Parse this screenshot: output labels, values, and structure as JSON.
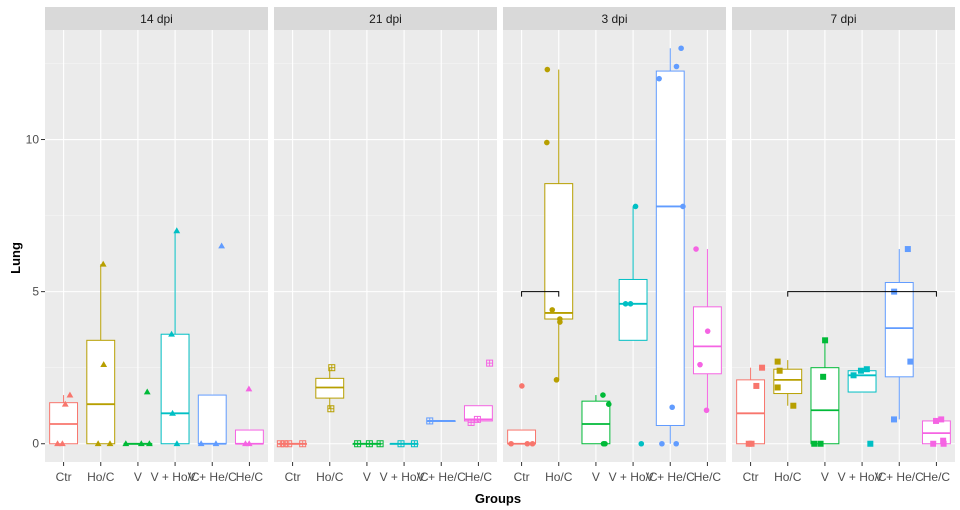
{
  "chart_data": {
    "type": "box",
    "xlabel": "Groups",
    "ylabel": "Lung",
    "ylim": [
      -0.6,
      13.6
    ],
    "yticks": [
      0,
      5,
      10
    ],
    "ytick_labels": [
      "0",
      "5",
      "10"
    ],
    "categories": [
      "Ctr",
      "Ho/C",
      "V",
      "V + Ho/C",
      "V + He/C",
      "He/C"
    ],
    "colors": {
      "Ctr": "#F8766D",
      "Ho/C": "#B79F00",
      "V": "#00BA38",
      "V + Ho/C": "#00BFC4",
      "V + He/C": "#619CFF",
      "He/C": "#F564E3"
    },
    "grid": true,
    "legend": "none",
    "facets": [
      {
        "label": "14 dpi",
        "marker": "triangle",
        "boxes": [
          {
            "group": "Ctr",
            "min": 0,
            "q1": 0,
            "median": 0.65,
            "q3": 1.35,
            "max": 1.6
          },
          {
            "group": "Ho/C",
            "min": 0,
            "q1": 0,
            "median": 1.3,
            "q3": 3.4,
            "max": 5.9
          },
          {
            "group": "V",
            "min": 0,
            "q1": 0,
            "median": 0,
            "q3": 0,
            "max": 0
          },
          {
            "group": "V + Ho/C",
            "min": 0,
            "q1": 0,
            "median": 1.0,
            "q3": 3.6,
            "max": 7.0
          },
          {
            "group": "V + He/C",
            "min": 0,
            "q1": 0,
            "median": 0,
            "q3": 1.6,
            "max": 1.6
          },
          {
            "group": "He/C",
            "min": 0,
            "q1": 0,
            "median": 0,
            "q3": 0.45,
            "max": 0.45
          }
        ],
        "points": [
          {
            "group": "Ctr",
            "values": [
              1.6,
              1.3,
              0,
              0
            ]
          },
          {
            "group": "Ho/C",
            "values": [
              5.9,
              2.6,
              0,
              0
            ]
          },
          {
            "group": "V",
            "values": [
              1.7,
              0,
              0,
              0
            ]
          },
          {
            "group": "V + Ho/C",
            "values": [
              7.0,
              3.6,
              1.0,
              0
            ]
          },
          {
            "group": "V + He/C",
            "values": [
              6.5,
              0,
              0
            ]
          },
          {
            "group": "He/C",
            "values": [
              1.8,
              0,
              0
            ]
          }
        ],
        "brackets": []
      },
      {
        "label": "21 dpi",
        "marker": "square-plus",
        "boxes": [
          {
            "group": "Ctr",
            "min": 0,
            "q1": 0,
            "median": 0,
            "q3": 0,
            "max": 0
          },
          {
            "group": "Ho/C",
            "min": 1.15,
            "q1": 1.5,
            "median": 1.85,
            "q3": 2.15,
            "max": 2.5
          },
          {
            "group": "V",
            "min": 0,
            "q1": 0,
            "median": 0,
            "q3": 0,
            "max": 0
          },
          {
            "group": "V + Ho/C",
            "min": 0,
            "q1": 0,
            "median": 0,
            "q3": 0,
            "max": 0
          },
          {
            "group": "V + He/C",
            "min": 0.75,
            "q1": 0.75,
            "median": 0.75,
            "q3": 0.75,
            "max": 0.75
          },
          {
            "group": "He/C",
            "min": 0.7,
            "q1": 0.75,
            "median": 0.8,
            "q3": 1.25,
            "max": 1.25
          }
        ],
        "points": [
          {
            "group": "Ctr",
            "values": [
              0,
              0,
              0,
              0
            ]
          },
          {
            "group": "Ho/C",
            "values": [
              2.5,
              1.15
            ]
          },
          {
            "group": "V",
            "values": [
              0,
              0,
              0
            ]
          },
          {
            "group": "V + Ho/C",
            "values": [
              0,
              0
            ]
          },
          {
            "group": "V + He/C",
            "values": [
              0.75
            ]
          },
          {
            "group": "He/C",
            "values": [
              2.65,
              0.8,
              0.7
            ]
          }
        ],
        "brackets": []
      },
      {
        "label": "3 dpi",
        "marker": "circle",
        "boxes": [
          {
            "group": "Ctr",
            "min": 0,
            "q1": 0,
            "median": 0,
            "q3": 0.45,
            "max": 0.45
          },
          {
            "group": "Ho/C",
            "min": 2.1,
            "q1": 4.1,
            "median": 4.3,
            "q3": 8.55,
            "max": 12.3
          },
          {
            "group": "V",
            "min": 0,
            "q1": 0,
            "median": 0.65,
            "q3": 1.4,
            "max": 1.6
          },
          {
            "group": "V + Ho/C",
            "min": 3.4,
            "q1": 3.4,
            "median": 4.6,
            "q3": 5.4,
            "max": 7.8
          },
          {
            "group": "V + He/C",
            "min": 0,
            "q1": 0.6,
            "median": 7.8,
            "q3": 12.25,
            "max": 13.0
          },
          {
            "group": "He/C",
            "min": 1.1,
            "q1": 2.3,
            "median": 3.2,
            "q3": 4.5,
            "max": 6.4
          }
        ],
        "points": [
          {
            "group": "Ctr",
            "values": [
              1.9,
              0,
              0,
              0
            ]
          },
          {
            "group": "Ho/C",
            "values": [
              12.3,
              9.9,
              4.4,
              4.1,
              4.0,
              2.1
            ]
          },
          {
            "group": "V",
            "values": [
              1.6,
              1.3,
              0,
              0
            ]
          },
          {
            "group": "V + Ho/C",
            "values": [
              7.8,
              4.6,
              4.6,
              0
            ]
          },
          {
            "group": "V + He/C",
            "values": [
              13.0,
              12.4,
              12.0,
              7.8,
              1.2,
              0,
              0
            ]
          },
          {
            "group": "He/C",
            "values": [
              6.4,
              3.7,
              2.6,
              1.1
            ]
          }
        ],
        "brackets": [
          {
            "from": "Ctr",
            "to": "Ho/C",
            "y": 5.0
          }
        ]
      },
      {
        "label": "7 dpi",
        "marker": "square",
        "boxes": [
          {
            "group": "Ctr",
            "min": 0,
            "q1": 0,
            "median": 1.0,
            "q3": 2.1,
            "max": 2.5
          },
          {
            "group": "Ho/C",
            "min": 1.25,
            "q1": 1.65,
            "median": 2.1,
            "q3": 2.45,
            "max": 2.75
          },
          {
            "group": "V",
            "min": 0,
            "q1": 0,
            "median": 1.1,
            "q3": 2.5,
            "max": 3.4
          },
          {
            "group": "V + Ho/C",
            "min": 1.7,
            "q1": 1.7,
            "median": 2.25,
            "q3": 2.4,
            "max": 2.45
          },
          {
            "group": "V + He/C",
            "min": 0.8,
            "q1": 2.2,
            "median": 3.8,
            "q3": 5.3,
            "max": 6.4
          },
          {
            "group": "He/C",
            "min": 0,
            "q1": 0,
            "median": 0.35,
            "q3": 0.75,
            "max": 0.8
          }
        ],
        "points": [
          {
            "group": "Ctr",
            "values": [
              2.5,
              1.9,
              0,
              0
            ]
          },
          {
            "group": "Ho/C",
            "values": [
              2.7,
              2.4,
              1.85,
              1.25
            ]
          },
          {
            "group": "V",
            "values": [
              3.4,
              2.2,
              0,
              0
            ]
          },
          {
            "group": "V + Ho/C",
            "values": [
              2.45,
              2.4,
              2.25,
              0
            ]
          },
          {
            "group": "V + He/C",
            "values": [
              6.4,
              5.0,
              2.7,
              0.8
            ]
          },
          {
            "group": "He/C",
            "values": [
              0.8,
              0.75,
              0.1,
              0,
              0
            ]
          }
        ],
        "brackets": [
          {
            "from": "Ho/C",
            "to": "He/C",
            "y": 5.0
          }
        ]
      }
    ]
  }
}
